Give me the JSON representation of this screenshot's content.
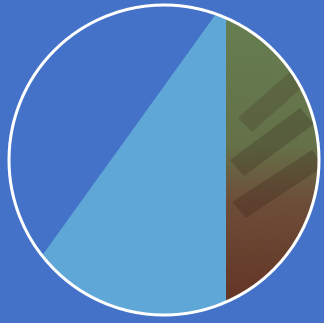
{
  "scene": {
    "background_color": "#4472c8",
    "lens_ring_color": "#ffffff",
    "regions": [
      {
        "name": "upper-left-dark-blue",
        "color": "#4472c8"
      },
      {
        "name": "light-blue-wedge",
        "color": "#5ea7d6"
      },
      {
        "name": "right-green-to-maroon",
        "colors": [
          "#5f8f56",
          "#6a4a34",
          "#5b1f14"
        ]
      }
    ],
    "texture_icon": "noise-texture-icon"
  }
}
